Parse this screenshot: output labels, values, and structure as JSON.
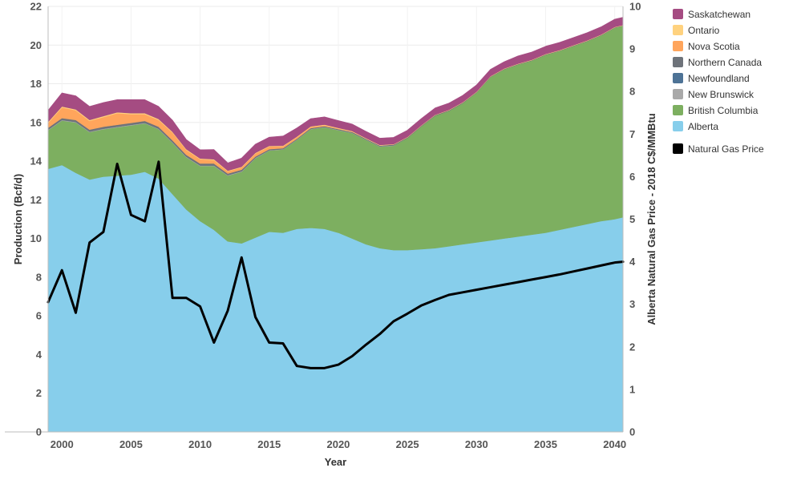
{
  "chart_data": {
    "type": "area",
    "xlabel": "Year",
    "ylabel": "Production (Bcf/d)",
    "y2label": "Alberta Natural Gas Price - 2018 C$/MMBtu",
    "xlim": [
      1999,
      2040.6
    ],
    "ylim": [
      0,
      22
    ],
    "y2lim": [
      0,
      10
    ],
    "x_ticks": [
      2000,
      2005,
      2010,
      2015,
      2020,
      2025,
      2030,
      2035,
      2040
    ],
    "y_ticks": [
      0,
      2,
      4,
      6,
      8,
      10,
      12,
      14,
      16,
      18,
      20,
      22
    ],
    "y2_ticks": [
      0,
      1,
      2,
      3,
      4,
      5,
      6,
      7,
      8,
      9,
      10
    ],
    "grid": true,
    "legend_position": "right",
    "x": [
      1999,
      2000,
      2001,
      2002,
      2003,
      2004,
      2005,
      2006,
      2007,
      2008,
      2009,
      2010,
      2011,
      2012,
      2013,
      2014,
      2015,
      2016,
      2017,
      2018,
      2019,
      2020,
      2021,
      2022,
      2023,
      2024,
      2025,
      2026,
      2027,
      2028,
      2029,
      2030,
      2031,
      2032,
      2033,
      2034,
      2035,
      2036,
      2037,
      2038,
      2039,
      2040,
      2040.6
    ],
    "series": [
      {
        "name": "Alberta",
        "color": "#87CEEB",
        "values": [
          13.6,
          13.8,
          13.4,
          13.05,
          13.2,
          13.25,
          13.3,
          13.45,
          13.1,
          12.3,
          11.5,
          10.9,
          10.45,
          9.85,
          9.75,
          10.05,
          10.35,
          10.3,
          10.5,
          10.55,
          10.5,
          10.3,
          10.0,
          9.7,
          9.5,
          9.4,
          9.4,
          9.45,
          9.5,
          9.6,
          9.7,
          9.8,
          9.9,
          10.0,
          10.1,
          10.2,
          10.3,
          10.45,
          10.6,
          10.75,
          10.9,
          11.0,
          11.1
        ]
      },
      {
        "name": "British Columbia",
        "color": "#7DAF60",
        "values": [
          2.0,
          2.3,
          2.6,
          2.45,
          2.45,
          2.5,
          2.55,
          2.5,
          2.55,
          2.65,
          2.7,
          2.85,
          3.3,
          3.4,
          3.7,
          4.1,
          4.2,
          4.3,
          4.6,
          5.1,
          5.25,
          5.3,
          5.45,
          5.4,
          5.25,
          5.4,
          5.8,
          6.35,
          6.85,
          7.0,
          7.3,
          7.75,
          8.45,
          8.75,
          8.9,
          9.0,
          9.2,
          9.25,
          9.35,
          9.45,
          9.6,
          9.9,
          9.9
        ]
      },
      {
        "name": "New Brunswick",
        "color": "#A9A9A9",
        "values": [
          0.03,
          0.03,
          0.03,
          0.03,
          0.03,
          0.03,
          0.03,
          0.03,
          0.03,
          0.03,
          0.03,
          0.03,
          0.03,
          0.03,
          0.03,
          0.03,
          0.02,
          0.02,
          0.02,
          0.02,
          0.02,
          0.02,
          0.02,
          0.02,
          0.02,
          0.02,
          0,
          0,
          0,
          0,
          0,
          0,
          0,
          0,
          0,
          0,
          0,
          0,
          0,
          0,
          0,
          0,
          0
        ]
      },
      {
        "name": "Newfoundland",
        "color": "#4E7396",
        "values": [
          0,
          0,
          0,
          0,
          0,
          0,
          0,
          0,
          0,
          0,
          0,
          0,
          0,
          0,
          0,
          0,
          0,
          0,
          0,
          0,
          0,
          0,
          0,
          0,
          0,
          0,
          0,
          0,
          0,
          0,
          0,
          0,
          0,
          0,
          0,
          0,
          0,
          0,
          0,
          0,
          0,
          0,
          0
        ]
      },
      {
        "name": "Northern Canada",
        "color": "#6E737A",
        "values": [
          0.1,
          0.1,
          0.1,
          0.1,
          0.1,
          0.1,
          0.1,
          0.1,
          0.1,
          0.1,
          0.1,
          0.1,
          0.1,
          0.08,
          0.08,
          0.06,
          0.05,
          0.05,
          0.04,
          0.04,
          0.04,
          0.04,
          0.04,
          0.04,
          0.04,
          0.04,
          0.03,
          0.03,
          0.03,
          0.03,
          0.03,
          0.02,
          0.02,
          0.02,
          0.02,
          0.02,
          0.02,
          0.02,
          0.02,
          0.02,
          0.02,
          0.02,
          0.02
        ]
      },
      {
        "name": "Nova Scotia",
        "color": "#FFA55C",
        "values": [
          0.25,
          0.55,
          0.5,
          0.45,
          0.5,
          0.6,
          0.45,
          0.35,
          0.35,
          0.4,
          0.25,
          0.22,
          0.18,
          0.12,
          0.12,
          0.16,
          0.14,
          0.1,
          0.08,
          0.06,
          0.05,
          0.03,
          0.02,
          0,
          0,
          0,
          0,
          0,
          0,
          0,
          0,
          0,
          0,
          0,
          0,
          0,
          0,
          0,
          0,
          0,
          0,
          0,
          0
        ]
      },
      {
        "name": "Ontario",
        "color": "#FFD27F",
        "values": [
          0.05,
          0.05,
          0.05,
          0.05,
          0.05,
          0.05,
          0.05,
          0.05,
          0.05,
          0.04,
          0.04,
          0.04,
          0.04,
          0.03,
          0.03,
          0.03,
          0.03,
          0.03,
          0.03,
          0.03,
          0.03,
          0.03,
          0.03,
          0.03,
          0.03,
          0.02,
          0.02,
          0.02,
          0.02,
          0.02,
          0.02,
          0.02,
          0.02,
          0.02,
          0.02,
          0.02,
          0.02,
          0.02,
          0.02,
          0.02,
          0.02,
          0.02,
          0.02
        ]
      },
      {
        "name": "Saskatchewan",
        "color": "#A54C82",
        "values": [
          0.6,
          0.7,
          0.7,
          0.7,
          0.7,
          0.65,
          0.7,
          0.7,
          0.65,
          0.6,
          0.5,
          0.45,
          0.5,
          0.4,
          0.45,
          0.45,
          0.45,
          0.5,
          0.45,
          0.4,
          0.4,
          0.38,
          0.36,
          0.35,
          0.35,
          0.35,
          0.35,
          0.35,
          0.35,
          0.35,
          0.35,
          0.35,
          0.35,
          0.35,
          0.4,
          0.4,
          0.4,
          0.4,
          0.4,
          0.4,
          0.4,
          0.4,
          0.4
        ]
      }
    ],
    "price_series": {
      "name": "Natural Gas Price",
      "color": "#000000",
      "x": [
        1999,
        2000,
        2001,
        2002,
        2003,
        2004,
        2005,
        2006,
        2007,
        2008,
        2009,
        2010,
        2011,
        2012,
        2013,
        2014,
        2015,
        2016,
        2017,
        2018,
        2019,
        2020,
        2021,
        2022,
        2023,
        2024,
        2025,
        2026,
        2027,
        2028,
        2029,
        2030,
        2031,
        2032,
        2033,
        2034,
        2035,
        2036,
        2037,
        2038,
        2039,
        2040,
        2040.6
      ],
      "values": [
        3.05,
        3.8,
        2.8,
        4.45,
        4.7,
        6.3,
        5.1,
        4.95,
        6.35,
        3.15,
        3.15,
        2.95,
        2.1,
        2.85,
        4.1,
        2.7,
        2.1,
        2.08,
        1.55,
        1.5,
        1.5,
        1.58,
        1.78,
        2.05,
        2.3,
        2.6,
        2.78,
        2.97,
        3.1,
        3.22,
        3.28,
        3.34,
        3.4,
        3.46,
        3.52,
        3.58,
        3.64,
        3.7,
        3.77,
        3.84,
        3.91,
        3.98,
        4.0
      ]
    },
    "legend_order": [
      "Saskatchewan",
      "Ontario",
      "Nova Scotia",
      "Northern Canada",
      "Newfoundland",
      "New Brunswick",
      "British Columbia",
      "Alberta",
      "Natural Gas Price"
    ]
  }
}
